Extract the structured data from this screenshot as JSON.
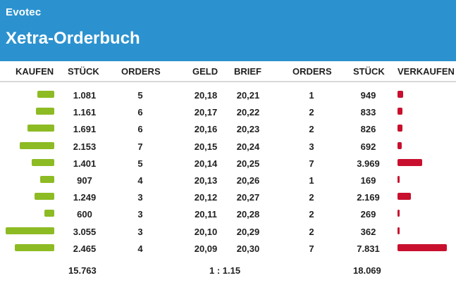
{
  "header": {
    "brand": "Evotec",
    "title": "Xetra-Orderbuch"
  },
  "columns": {
    "kaufen": "KAUFEN",
    "stueck_buy": "STÜCK",
    "orders_buy": "ORDERS",
    "geld": "GELD",
    "brief": "BRIEF",
    "orders_sell": "ORDERS",
    "stueck_sell": "STÜCK",
    "verkaufen": "VERKAUFEN"
  },
  "orderbook": {
    "rows": [
      {
        "buy_qty": "1.081",
        "buy_orders": "5",
        "bid": "20,18",
        "ask": "20,21",
        "sell_orders": "1",
        "sell_qty": "949"
      },
      {
        "buy_qty": "1.161",
        "buy_orders": "6",
        "bid": "20,17",
        "ask": "20,22",
        "sell_orders": "2",
        "sell_qty": "833"
      },
      {
        "buy_qty": "1.691",
        "buy_orders": "6",
        "bid": "20,16",
        "ask": "20,23",
        "sell_orders": "2",
        "sell_qty": "826"
      },
      {
        "buy_qty": "2.153",
        "buy_orders": "7",
        "bid": "20,15",
        "ask": "20,24",
        "sell_orders": "3",
        "sell_qty": "692"
      },
      {
        "buy_qty": "1.401",
        "buy_orders": "5",
        "bid": "20,14",
        "ask": "20,25",
        "sell_orders": "7",
        "sell_qty": "3.969"
      },
      {
        "buy_qty": "907",
        "buy_orders": "4",
        "bid": "20,13",
        "ask": "20,26",
        "sell_orders": "1",
        "sell_qty": "169"
      },
      {
        "buy_qty": "1.249",
        "buy_orders": "3",
        "bid": "20,12",
        "ask": "20,27",
        "sell_orders": "2",
        "sell_qty": "2.169"
      },
      {
        "buy_qty": "600",
        "buy_orders": "3",
        "bid": "20,11",
        "ask": "20,28",
        "sell_orders": "2",
        "sell_qty": "269"
      },
      {
        "buy_qty": "3.055",
        "buy_orders": "3",
        "bid": "20,10",
        "ask": "20,29",
        "sell_orders": "2",
        "sell_qty": "362"
      },
      {
        "buy_qty": "2.465",
        "buy_orders": "4",
        "bid": "20,09",
        "ask": "20,30",
        "sell_orders": "7",
        "sell_qty": "7.831"
      }
    ],
    "buy_bar_max_qty": 3055,
    "sell_bar_max_qty": 7831
  },
  "footer": {
    "buy_total": "15.763",
    "ratio": "1 : 1.15",
    "sell_total": "18.069"
  },
  "colors": {
    "header_bg": "#2b92cf",
    "buy_bar": "#8dbb24",
    "sell_bar": "#c8102e"
  }
}
